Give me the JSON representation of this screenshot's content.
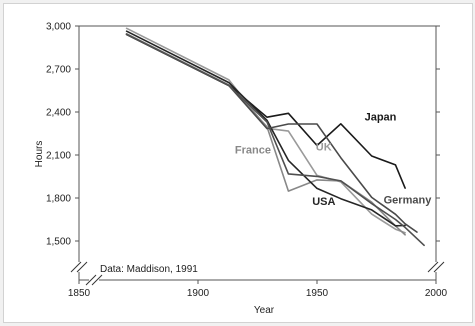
{
  "chart_data": {
    "type": "line",
    "xlabel": "Year",
    "ylabel": "Hours",
    "xlim": [
      1850,
      2000
    ],
    "ylim": [
      1350,
      3000
    ],
    "x_ticks": [
      1850,
      1900,
      1950,
      2000
    ],
    "x_tick_labels": [
      "1850",
      "1900",
      "1950",
      "2000"
    ],
    "y_ticks": [
      1500,
      1800,
      2100,
      2400,
      2700,
      3000
    ],
    "y_tick_labels": [
      "1,500",
      "1,800",
      "2,100",
      "2,400",
      "2,700",
      "3,000"
    ],
    "y_axis_break": true,
    "x_axis_break": true,
    "grid": false,
    "source_note": "Data: Maddison, 1991",
    "series": [
      {
        "name": "Japan",
        "color": "#1a1a1a",
        "points": [
          [
            1870,
            2945
          ],
          [
            1913,
            2588
          ],
          [
            1929,
            2364
          ],
          [
            1938,
            2391
          ],
          [
            1950,
            2166
          ],
          [
            1960,
            2318
          ],
          [
            1973,
            2093
          ],
          [
            1983,
            2031
          ],
          [
            1987,
            1869
          ]
        ]
      },
      {
        "name": "UK",
        "color": "#9a9a9a",
        "points": [
          [
            1870,
            2984
          ],
          [
            1913,
            2624
          ],
          [
            1929,
            2286
          ],
          [
            1938,
            2267
          ],
          [
            1950,
            1958
          ],
          [
            1960,
            1913
          ],
          [
            1973,
            1688
          ],
          [
            1983,
            1582
          ],
          [
            1987,
            1557
          ]
        ]
      },
      {
        "name": "France",
        "color": "#888888",
        "points": [
          [
            1870,
            2945
          ],
          [
            1913,
            2588
          ],
          [
            1929,
            2297
          ],
          [
            1938,
            1848
          ],
          [
            1950,
            1926
          ],
          [
            1960,
            1919
          ],
          [
            1973,
            1771
          ],
          [
            1983,
            1605
          ],
          [
            1987,
            1543
          ]
        ]
      },
      {
        "name": "USA",
        "color": "#262626",
        "points": [
          [
            1870,
            2964
          ],
          [
            1913,
            2605
          ],
          [
            1929,
            2342
          ],
          [
            1938,
            2062
          ],
          [
            1950,
            1867
          ],
          [
            1960,
            1795
          ],
          [
            1973,
            1717
          ],
          [
            1983,
            1606
          ],
          [
            1987,
            1608
          ]
        ]
      },
      {
        "name": "Germany",
        "color": "#4a4a4a",
        "points": [
          [
            1870,
            2941
          ],
          [
            1913,
            2584
          ],
          [
            1929,
            2284
          ],
          [
            1938,
            2316
          ],
          [
            1950,
            2316
          ],
          [
            1960,
            2081
          ],
          [
            1973,
            1804
          ],
          [
            1983,
            1686
          ],
          [
            1987,
            1620
          ],
          [
            1992,
            1562
          ]
        ]
      },
      {
        "name": "",
        "color": "#4f4f4f",
        "points": [
          [
            1870,
            2941
          ],
          [
            1913,
            2584
          ],
          [
            1929,
            2330
          ],
          [
            1938,
            1968
          ],
          [
            1950,
            1951
          ],
          [
            1960,
            1919
          ],
          [
            1973,
            1761
          ],
          [
            1983,
            1650
          ],
          [
            1987,
            1595
          ],
          [
            1995,
            1470
          ]
        ]
      }
    ],
    "labels": [
      {
        "text": "Japan",
        "series": "Japan",
        "x": 1970,
        "y": 2340
      },
      {
        "text": "UK",
        "series": "UK",
        "x": 1949.5,
        "y": 2130
      },
      {
        "text": "France",
        "series": "France",
        "x": 1915.5,
        "y": 2110
      },
      {
        "text": "USA",
        "series": "USA",
        "x": 1948,
        "y": 1750
      },
      {
        "text": "Germany",
        "series": "Germany",
        "x": 1978,
        "y": 1760
      }
    ]
  }
}
